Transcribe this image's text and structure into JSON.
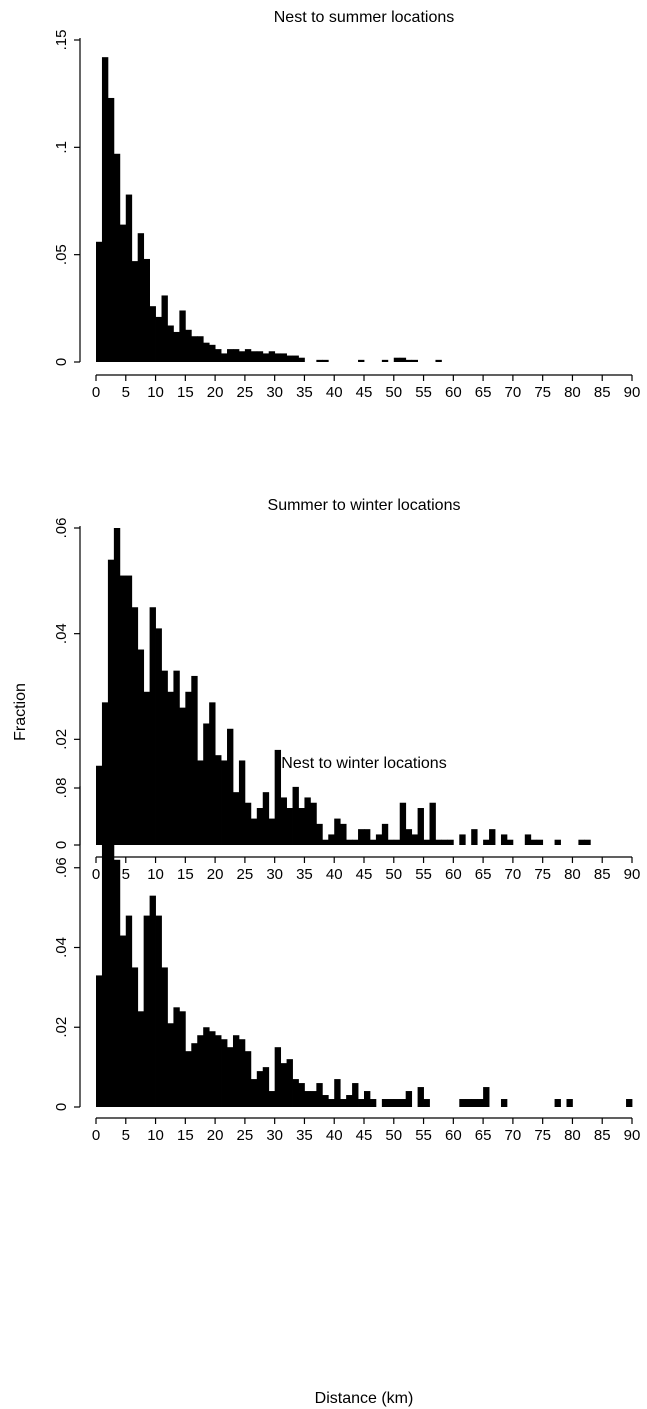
{
  "figure": {
    "shared_ylabel": "Fraction",
    "shared_xlabel": "Distance (km)"
  },
  "chart_data": [
    {
      "type": "bar",
      "title": "Nest to summer locations",
      "xlabel": "",
      "ylabel": "",
      "bin_width_km": 1,
      "xlim": [
        0,
        90
      ],
      "ylim": [
        0,
        0.15
      ],
      "x_ticks": [
        0,
        5,
        10,
        15,
        20,
        25,
        30,
        35,
        40,
        45,
        50,
        55,
        60,
        65,
        70,
        75,
        80,
        85,
        90
      ],
      "y_ticks": [
        0,
        0.05,
        0.1,
        0.15
      ],
      "y_tick_labels": [
        "0",
        ".05",
        ".1",
        ".15"
      ],
      "grid": false,
      "values": [
        0.056,
        0.142,
        0.123,
        0.097,
        0.064,
        0.078,
        0.047,
        0.06,
        0.048,
        0.026,
        0.021,
        0.031,
        0.017,
        0.014,
        0.024,
        0.015,
        0.012,
        0.012,
        0.009,
        0.008,
        0.006,
        0.004,
        0.006,
        0.006,
        0.005,
        0.006,
        0.005,
        0.005,
        0.004,
        0.005,
        0.004,
        0.004,
        0.003,
        0.003,
        0.002,
        0.0,
        0.0,
        0.001,
        0.001,
        0.0,
        0.0,
        0.0,
        0.0,
        0.0,
        0.001,
        0.0,
        0.0,
        0.0,
        0.001,
        0.0,
        0.002,
        0.002,
        0.001,
        0.001,
        0.0,
        0.0,
        0.0,
        0.001
      ]
    },
    {
      "type": "bar",
      "title": "Summer to winter locations",
      "xlabel": "",
      "ylabel": "Fraction",
      "bin_width_km": 1,
      "xlim": [
        0,
        90
      ],
      "ylim": [
        0,
        0.06
      ],
      "x_ticks": [
        0,
        5,
        10,
        15,
        20,
        25,
        30,
        35,
        40,
        45,
        50,
        55,
        60,
        65,
        70,
        75,
        80,
        85,
        90
      ],
      "y_ticks": [
        0,
        0.02,
        0.04,
        0.06
      ],
      "y_tick_labels": [
        "0",
        ".02",
        ".04",
        ".06"
      ],
      "grid": false,
      "values": [
        0.015,
        0.027,
        0.054,
        0.06,
        0.051,
        0.051,
        0.045,
        0.037,
        0.029,
        0.045,
        0.041,
        0.033,
        0.029,
        0.033,
        0.026,
        0.029,
        0.032,
        0.016,
        0.023,
        0.027,
        0.017,
        0.016,
        0.022,
        0.01,
        0.016,
        0.008,
        0.005,
        0.007,
        0.01,
        0.005,
        0.018,
        0.009,
        0.007,
        0.011,
        0.007,
        0.009,
        0.008,
        0.004,
        0.001,
        0.002,
        0.005,
        0.004,
        0.001,
        0.001,
        0.003,
        0.003,
        0.001,
        0.002,
        0.004,
        0.001,
        0.001,
        0.008,
        0.003,
        0.002,
        0.007,
        0.001,
        0.008,
        0.001,
        0.001,
        0.001,
        0.0,
        0.002,
        0.0,
        0.003,
        0.0,
        0.001,
        0.003,
        0.0,
        0.002,
        0.001,
        0.0,
        0.0,
        0.002,
        0.001,
        0.001,
        0.0,
        0.0,
        0.001,
        0.0,
        0.0,
        0.0,
        0.001,
        0.001
      ]
    },
    {
      "type": "bar",
      "title": "Nest to winter locations",
      "xlabel": "Distance (km)",
      "ylabel": "",
      "bin_width_km": 1,
      "xlim": [
        0,
        90
      ],
      "ylim": [
        0,
        0.08
      ],
      "x_ticks": [
        0,
        5,
        10,
        15,
        20,
        25,
        30,
        35,
        40,
        45,
        50,
        55,
        60,
        65,
        70,
        75,
        80,
        85,
        90
      ],
      "y_ticks": [
        0,
        0.02,
        0.04,
        0.06,
        0.08
      ],
      "y_tick_labels": [
        "0",
        ".02",
        ".04",
        ".06",
        ".08"
      ],
      "grid": false,
      "values": [
        0.033,
        0.077,
        0.084,
        0.062,
        0.043,
        0.048,
        0.035,
        0.024,
        0.048,
        0.053,
        0.048,
        0.035,
        0.021,
        0.025,
        0.024,
        0.014,
        0.016,
        0.018,
        0.02,
        0.019,
        0.018,
        0.017,
        0.015,
        0.018,
        0.017,
        0.014,
        0.007,
        0.009,
        0.01,
        0.004,
        0.015,
        0.011,
        0.012,
        0.007,
        0.006,
        0.004,
        0.004,
        0.006,
        0.003,
        0.002,
        0.007,
        0.002,
        0.003,
        0.006,
        0.002,
        0.004,
        0.002,
        0.0,
        0.002,
        0.002,
        0.002,
        0.002,
        0.004,
        0.0,
        0.005,
        0.002,
        0.0,
        0.0,
        0.0,
        0.0,
        0.0,
        0.002,
        0.002,
        0.002,
        0.002,
        0.005,
        0.0,
        0.0,
        0.002,
        0.0,
        0.0,
        0.0,
        0.0,
        0.0,
        0.0,
        0.0,
        0.0,
        0.002,
        0.0,
        0.002,
        0.0,
        0.0,
        0.0,
        0.0,
        0.0,
        0.0,
        0.0,
        0.0,
        0.0,
        0.002
      ]
    }
  ]
}
